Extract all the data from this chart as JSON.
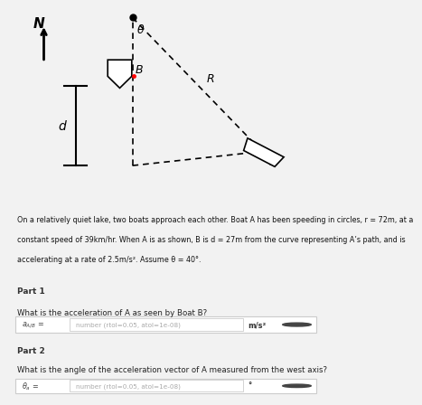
{
  "bg_color": "#4ab8cc",
  "fig_bg": "#f2f2f2",
  "white": "#ffffff",
  "black": "#000000",
  "description_line1": "On a relatively quiet lake, two boats approach each other. Boat A has been speeding in circles, r = 72m, at a",
  "description_line2": "constant speed of 39km/hr. When A is as shown, B is d = 27m from the curve representing A’s path, and is",
  "description_line3": "accelerating at a rate of 2.5m/s². Assume θ = 40°.",
  "part1_label": "Part 1",
  "part1_question": "What is the acceleration of A as seen by Boat B?",
  "part1_var": "a_{A/B} =",
  "part1_placeholder": "number (rtol=0.05, atol=1e-08)",
  "part1_unit": "m/s²",
  "part2_label": "Part 2",
  "part2_question": "What is the angle of the acceleration vector of A measured from the west axis?",
  "part2_var": "\\theta_a =",
  "part2_placeholder": "number (rtol=0.05, atol=1e-08)",
  "part2_unit": "°",
  "header_bg": "#e8e8e8",
  "input_border": "#cccccc",
  "dark_btn": "#444444",
  "text_dark": "#333333",
  "text_light": "#999999"
}
